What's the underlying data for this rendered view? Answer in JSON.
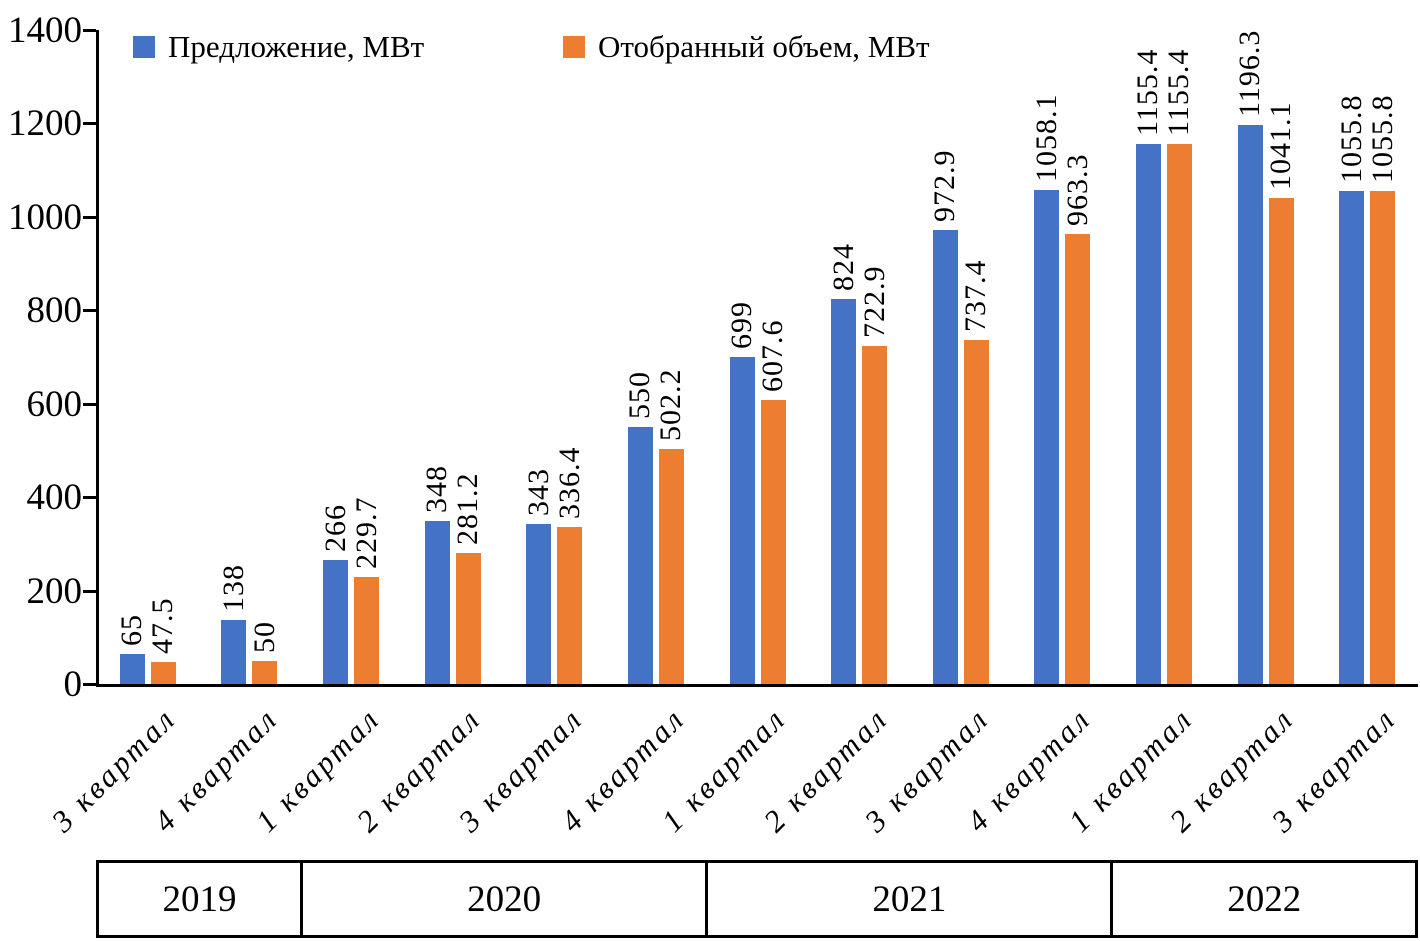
{
  "legend": {
    "items": [
      {
        "label": "Предложение, МВт",
        "color": "#4472C4"
      },
      {
        "label": "Отобранный объем, МВт",
        "color": "#ED7D31"
      }
    ]
  },
  "chart_data": {
    "type": "bar",
    "title": "",
    "xlabel": "",
    "ylabel": "",
    "categories": [
      "3 квартал",
      "4 квартал",
      "1 квартал",
      "2 квартал",
      "3 квартал",
      "4 квартал",
      "1 квартал",
      "2 квартал",
      "3 квартал",
      "4 квартал",
      "1 квартал",
      "2 квартал",
      "3 квартал"
    ],
    "year_groups": [
      {
        "label": "2019",
        "span": 2
      },
      {
        "label": "2020",
        "span": 4
      },
      {
        "label": "2021",
        "span": 4
      },
      {
        "label": "2022",
        "span": 3
      }
    ],
    "series": [
      {
        "name": "Предложение, МВт",
        "color": "#4472C4",
        "values": [
          65,
          138,
          266,
          348,
          343,
          550,
          699,
          824,
          972.9,
          1058.1,
          1155.4,
          1196.3,
          1055.8
        ]
      },
      {
        "name": "Отобранный объем, МВт",
        "color": "#ED7D31",
        "values": [
          47.5,
          50,
          229.7,
          281.2,
          336.4,
          502.2,
          607.6,
          722.9,
          737.4,
          963.3,
          1155.4,
          1041.1,
          1055.8
        ]
      }
    ],
    "ylim": [
      0,
      1400
    ],
    "yticks": [
      0,
      200,
      400,
      600,
      800,
      1000,
      1200,
      1400
    ],
    "grid": false,
    "legend_position": "top-left",
    "value_labels_rotation": -90,
    "category_labels_rotation": -45,
    "axis_color": "#000000",
    "text_color": "#000000"
  }
}
